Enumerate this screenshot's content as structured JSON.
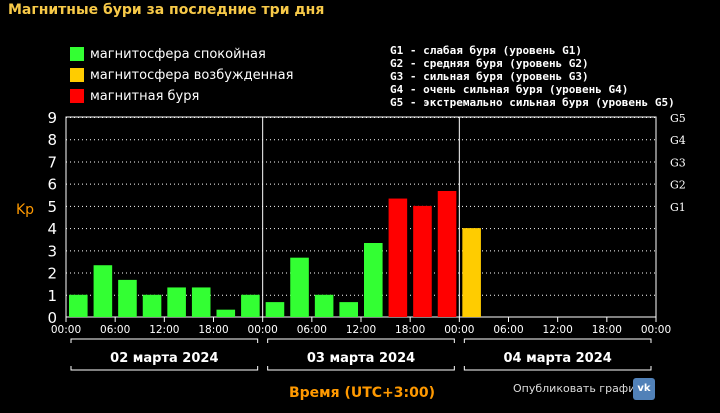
{
  "title": "Магнитные бури за последние три дня",
  "legend": [
    {
      "label": "магнитосфера спокойная",
      "color": "#33ff33"
    },
    {
      "label": "магнитосфера возбужденная",
      "color": "#ffcc00"
    },
    {
      "label": "магнитная буря",
      "color": "#ff0000"
    }
  ],
  "g_legend": [
    "G1 - слабая буря (уровень G1)",
    "G2 - средняя буря (уровень G2)",
    "G3 - сильная буря (уровень G3)",
    "G4 - очень сильная буря (уровень G4)",
    "G5 - экстремально сильная буря (уровень G5)"
  ],
  "share_label": "Опубликовать график:",
  "vk_label": "vk-icon",
  "chart_data": {
    "type": "bar",
    "ylabel": "Kp",
    "xlabel": "Время (UTC+3:00)",
    "ylim": [
      0,
      9
    ],
    "y_ticks": [
      "0",
      "1",
      "2",
      "3",
      "4",
      "5",
      "6",
      "7",
      "8",
      "9"
    ],
    "g_levels": [
      {
        "label": "G1",
        "value": 5
      },
      {
        "label": "G2",
        "value": 6
      },
      {
        "label": "G3",
        "value": 7
      },
      {
        "label": "G4",
        "value": 8
      },
      {
        "label": "G5",
        "value": 9
      }
    ],
    "x_ticks": [
      "00:00",
      "06:00",
      "12:00",
      "18:00",
      "00:00",
      "06:00",
      "12:00",
      "18:00",
      "00:00",
      "06:00",
      "12:00",
      "18:00",
      "00:00"
    ],
    "days": [
      "02 марта 2024",
      "03 марта 2024",
      "04 марта 2024"
    ],
    "grid": true,
    "slots_total": 24,
    "bars": [
      {
        "slot": 0,
        "value": 1.0,
        "status": "quiet"
      },
      {
        "slot": 1,
        "value": 2.33,
        "status": "quiet"
      },
      {
        "slot": 2,
        "value": 1.67,
        "status": "quiet"
      },
      {
        "slot": 3,
        "value": 1.0,
        "status": "quiet"
      },
      {
        "slot": 4,
        "value": 1.33,
        "status": "quiet"
      },
      {
        "slot": 5,
        "value": 1.33,
        "status": "quiet"
      },
      {
        "slot": 6,
        "value": 0.33,
        "status": "quiet"
      },
      {
        "slot": 7,
        "value": 1.0,
        "status": "quiet"
      },
      {
        "slot": 8,
        "value": 0.67,
        "status": "quiet"
      },
      {
        "slot": 9,
        "value": 2.67,
        "status": "quiet"
      },
      {
        "slot": 10,
        "value": 1.0,
        "status": "quiet"
      },
      {
        "slot": 11,
        "value": 0.67,
        "status": "quiet"
      },
      {
        "slot": 12,
        "value": 3.33,
        "status": "quiet"
      },
      {
        "slot": 13,
        "value": 5.33,
        "status": "storm"
      },
      {
        "slot": 14,
        "value": 5.0,
        "status": "storm"
      },
      {
        "slot": 15,
        "value": 5.67,
        "status": "storm"
      },
      {
        "slot": 16,
        "value": 4.0,
        "status": "active"
      }
    ],
    "status_colors": {
      "quiet": "#33ff33",
      "active": "#ffcc00",
      "storm": "#ff0000"
    }
  }
}
